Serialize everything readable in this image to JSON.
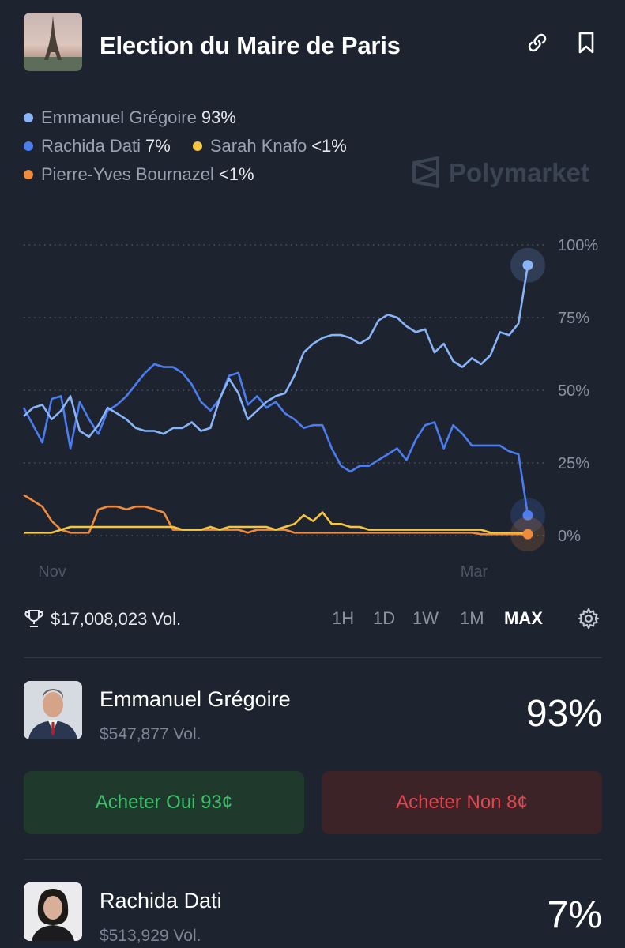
{
  "header": {
    "title": "Election du Maire de Paris",
    "link_icon": "link-icon",
    "bookmark_icon": "bookmark-icon"
  },
  "legend": {
    "items": [
      {
        "name": "Emmanuel Grégoire",
        "value": "93%",
        "color": "#8ab4f8"
      },
      {
        "name": "Rachida Dati",
        "value": "7%",
        "color": "#4c7df0"
      },
      {
        "name": "Sarah Knafo",
        "value": "<1%",
        "color": "#f5c542"
      },
      {
        "name": "Pierre-Yves Bournazel",
        "value": "<1%",
        "color": "#f08a3c"
      }
    ]
  },
  "watermark": "Polymarket",
  "chart_data": {
    "type": "line",
    "x_tick_labels": [
      "Nov",
      "Mar"
    ],
    "y_tick_labels": [
      "100%",
      "75%",
      "50%",
      "25%",
      "0%"
    ],
    "ylim": [
      0,
      100
    ],
    "grid": true,
    "series": [
      {
        "name": "Emmanuel Grégoire",
        "color": "#8ab4f8",
        "values": [
          41,
          44,
          45,
          40,
          43,
          48,
          36,
          34,
          38,
          44,
          42,
          40,
          37,
          36,
          36,
          35,
          37,
          37,
          39,
          36,
          37,
          47,
          54,
          49,
          40,
          43,
          46,
          48,
          49,
          55,
          63,
          66,
          68,
          69,
          69,
          68,
          66,
          68,
          74,
          76,
          75,
          72,
          70,
          71,
          63,
          66,
          60,
          58,
          61,
          59,
          62,
          70,
          69,
          73,
          93
        ]
      },
      {
        "name": "Rachida Dati",
        "color": "#4c7df0",
        "values": [
          44,
          38,
          32,
          47,
          48,
          30,
          46,
          40,
          35,
          43,
          45,
          48,
          52,
          56,
          59,
          58,
          58,
          56,
          52,
          46,
          43,
          47,
          55,
          56,
          45,
          48,
          44,
          46,
          42,
          40,
          37,
          38,
          38,
          30,
          24,
          22,
          24,
          24,
          26,
          28,
          30,
          26,
          33,
          38,
          39,
          30,
          38,
          35,
          31,
          31,
          31,
          31,
          29,
          28,
          7
        ]
      },
      {
        "name": "Sarah Knafo",
        "color": "#f5c542",
        "values": [
          1,
          1,
          1,
          1,
          2,
          3,
          3,
          3,
          3,
          3,
          3,
          3,
          3,
          3,
          3,
          3,
          3,
          2,
          2,
          2,
          3,
          2,
          3,
          3,
          3,
          3,
          3,
          2,
          3,
          4,
          7,
          5,
          8,
          4,
          4,
          3,
          3,
          2,
          2,
          2,
          2,
          2,
          2,
          2,
          2,
          2,
          2,
          2,
          2,
          2,
          1,
          1,
          1,
          1,
          0.5
        ]
      },
      {
        "name": "Pierre-Yves Bournazel",
        "color": "#f08a3c",
        "values": [
          14,
          12,
          10,
          5,
          2,
          1,
          1,
          1,
          9,
          10,
          10,
          9,
          10,
          10,
          9,
          8,
          2,
          2,
          2,
          2,
          2,
          2,
          2,
          2,
          1,
          2,
          2,
          2,
          2,
          1,
          1,
          1,
          1,
          1,
          1,
          1,
          1,
          1,
          1,
          1,
          1,
          1,
          1,
          1,
          1,
          1,
          1,
          1,
          1,
          0.5,
          0.5,
          0.5,
          0.5,
          0.5,
          0.5
        ]
      }
    ]
  },
  "stats": {
    "volume": "$17,008,023 Vol.",
    "trophy_icon": "trophy-icon",
    "timeframes": [
      "1H",
      "1D",
      "1W",
      "1M",
      "MAX"
    ],
    "active_timeframe": "MAX",
    "settings_icon": "gear-icon"
  },
  "candidates": [
    {
      "name": "Emmanuel Grégoire",
      "volume": "$547,877 Vol.",
      "percent": "93%"
    },
    {
      "name": "Rachida Dati",
      "volume": "$513,929 Vol.",
      "percent": "7%"
    }
  ],
  "buttons": {
    "yes_label": "Acheter Oui 93¢",
    "no_label": "Acheter Non 8¢"
  }
}
